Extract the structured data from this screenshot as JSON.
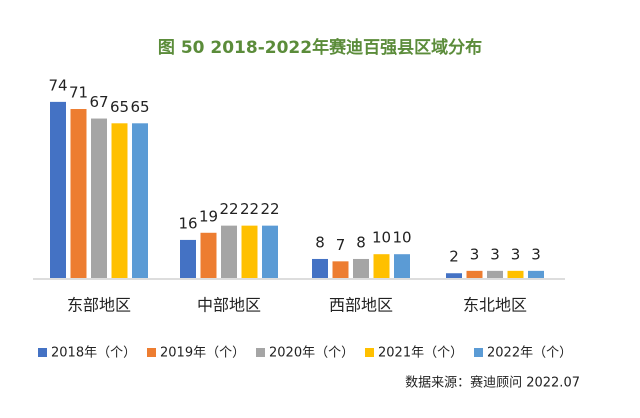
{
  "chart_data": {
    "type": "bar",
    "title": "图 50 2018-2022年赛迪百强县区域分布",
    "categories": [
      "东部地区",
      "中部地区",
      "西部地区",
      "东北地区"
    ],
    "series": [
      {
        "name": "2018年（个）",
        "color": "#4472c4",
        "values": [
          74,
          16,
          8,
          2
        ]
      },
      {
        "name": "2019年（个）",
        "color": "#ed7d31",
        "values": [
          71,
          19,
          7,
          3
        ]
      },
      {
        "name": "2020年（个）",
        "color": "#a5a5a5",
        "values": [
          67,
          22,
          8,
          3
        ]
      },
      {
        "name": "2021年（个）",
        "color": "#ffc000",
        "values": [
          65,
          22,
          10,
          3
        ]
      },
      {
        "name": "2022年（个）",
        "color": "#5b9bd5",
        "values": [
          65,
          22,
          10,
          3
        ]
      }
    ],
    "source": "数据来源：赛迪顾问 2022.07"
  }
}
